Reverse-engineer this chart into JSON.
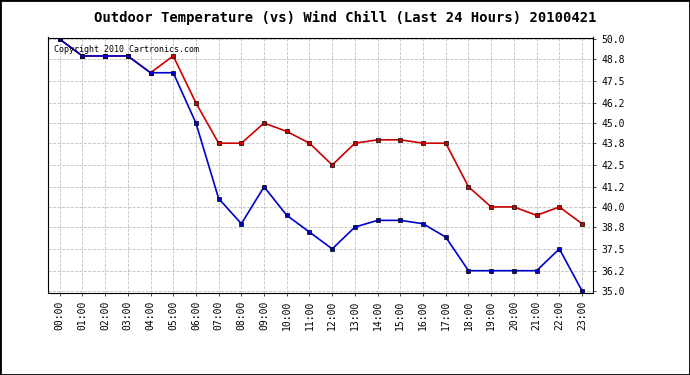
{
  "title": "Outdoor Temperature (vs) Wind Chill (Last 24 Hours) 20100421",
  "copyright_text": "Copyright 2010 Cartronics.com",
  "x_labels": [
    "00:00",
    "01:00",
    "02:00",
    "03:00",
    "04:00",
    "05:00",
    "06:00",
    "07:00",
    "08:00",
    "09:00",
    "10:00",
    "11:00",
    "12:00",
    "13:00",
    "14:00",
    "15:00",
    "16:00",
    "17:00",
    "18:00",
    "19:00",
    "20:00",
    "21:00",
    "22:00",
    "23:00"
  ],
  "temp_data": [
    50.0,
    49.0,
    49.0,
    49.0,
    48.0,
    49.0,
    46.2,
    43.8,
    43.8,
    45.0,
    44.5,
    43.8,
    42.5,
    43.8,
    44.0,
    44.0,
    43.8,
    43.8,
    41.2,
    40.0,
    40.0,
    39.5,
    40.0,
    39.0
  ],
  "windchill_data": [
    50.0,
    49.0,
    49.0,
    49.0,
    48.0,
    48.0,
    45.0,
    40.5,
    39.0,
    41.2,
    39.5,
    38.5,
    37.5,
    38.8,
    39.2,
    39.2,
    39.0,
    38.2,
    36.2,
    36.2,
    36.2,
    36.2,
    37.5,
    35.0
  ],
  "temp_color": "#cc0000",
  "windchill_color": "#0000cc",
  "ylim_min": 35.0,
  "ylim_max": 50.0,
  "yticks": [
    35.0,
    36.2,
    37.5,
    38.8,
    40.0,
    41.2,
    42.5,
    43.8,
    45.0,
    46.2,
    47.5,
    48.8,
    50.0
  ],
  "background_color": "#ffffff",
  "grid_color": "#bbbbbb",
  "title_fontsize": 10,
  "copyright_fontsize": 6,
  "tick_fontsize": 7
}
